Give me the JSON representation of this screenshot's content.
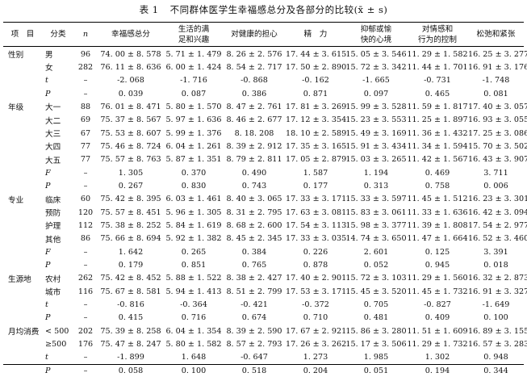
{
  "caption": {
    "number": "表 1",
    "title": "不同群体医学生幸福感总分及各部分的比较(x̄ ± s)"
  },
  "headers": [
    [
      "项　目"
    ],
    [
      "分类"
    ],
    [
      "n"
    ],
    [
      "幸福感总分"
    ],
    [
      "生活的满",
      "足和兴趣"
    ],
    [
      "对健康的担心"
    ],
    [
      "精　力"
    ],
    [
      "抑郁或愉",
      "快的心境"
    ],
    [
      "对情感和",
      "行为的控制"
    ],
    [
      "松弛和紧张"
    ]
  ],
  "rows": [
    [
      "性别",
      "男",
      "96",
      "74. 00 ± 8. 578",
      "5. 71 ± 1. 479",
      "8. 26 ± 2. 576",
      "17. 44 ± 3. 615",
      "15. 05 ± 3. 546",
      "11. 29 ± 1. 582",
      "16. 25 ± 3. 277"
    ],
    [
      "",
      "女",
      "282",
      "76. 11 ± 8. 636",
      "6. 00 ± 1. 424",
      "8. 54 ± 2. 717",
      "17. 50 ± 2. 890",
      "15. 72 ± 3. 342",
      "11. 44 ± 1. 701",
      "16. 91 ± 3. 176"
    ],
    [
      "",
      "t",
      "–",
      "-2. 068",
      "-1. 716",
      "-0. 868",
      "-0. 162",
      "-1. 665",
      "-0. 731",
      "-1. 748"
    ],
    [
      "",
      "P",
      "–",
      "0. 039",
      "0. 087",
      "0. 386",
      "0. 871",
      "0. 097",
      "0. 465",
      "0. 081"
    ],
    [
      "年级",
      "大一",
      "88",
      "76. 01 ± 8. 471",
      "5. 80 ± 1. 570",
      "8. 47 ± 2. 761",
      "17. 81 ± 3. 269",
      "15. 99 ± 3. 528",
      "11. 59 ± 1. 817",
      "17. 40 ± 3. 057"
    ],
    [
      "",
      "大二",
      "69",
      "75. 37 ± 8. 567",
      "5. 97 ± 1. 636",
      "8. 46 ± 2. 677",
      "17. 12 ± 3. 354",
      "15. 23 ± 3. 553",
      "11. 25 ± 1. 897",
      "16. 93 ± 3. 055"
    ],
    [
      "",
      "大三",
      "67",
      "75. 53 ± 8. 607",
      "5. 99 ± 1. 376",
      "8. 18. 208",
      "18. 10 ± 2. 589",
      "15. 49 ± 3. 169",
      "11. 36 ± 1. 432",
      "17. 25 ± 3. 086"
    ],
    [
      "",
      "大四",
      "77",
      "75. 46 ± 8. 724",
      "6. 04 ± 1. 261",
      "8. 39 ± 2. 912",
      "17. 35 ± 3. 165",
      "15. 91 ± 3. 434",
      "11. 34 ± 1. 594",
      "15. 70 ± 3. 502"
    ],
    [
      "",
      "大五",
      "77",
      "75. 57 ± 8. 763",
      "5. 87 ± 1. 351",
      "8. 79 ± 2. 811",
      "17. 05 ± 2. 879",
      "15. 03 ± 3. 265",
      "11. 42 ± 1. 567",
      "16. 43 ± 3. 907"
    ],
    [
      "",
      "F",
      "–",
      "1. 305",
      "0. 370",
      "0. 490",
      "1. 587",
      "1. 194",
      "0. 469",
      "3. 711"
    ],
    [
      "",
      "P",
      "–",
      "0. 267",
      "0. 830",
      "0. 743",
      "0. 177",
      "0. 313",
      "0. 758",
      "0. 006"
    ],
    [
      "专业",
      "临床",
      "60",
      "75. 42 ± 8. 395",
      "6. 03 ± 1. 461",
      "8. 40 ± 3. 065",
      "17. 33 ± 3. 171",
      "15. 33 ± 3. 597",
      "11. 45 ± 1. 512",
      "16. 23 ± 3. 301"
    ],
    [
      "",
      "预防",
      "120",
      "75. 57 ± 8. 451",
      "5. 96 ± 1. 305",
      "8. 31 ± 2. 795",
      "17. 63 ± 3. 081",
      "15. 83 ± 3. 061",
      "11. 33 ± 1. 636",
      "16. 42 ± 3. 094"
    ],
    [
      "",
      "护理",
      "112",
      "75. 38 ± 8. 252",
      "5. 84 ± 1. 619",
      "8. 68 ± 2. 600",
      "17. 54 ± 3. 113",
      "15. 98 ± 3. 377",
      "11. 39 ± 1. 808",
      "17. 54 ± 2. 977"
    ],
    [
      "",
      "其他",
      "86",
      "75. 66 ± 8. 694",
      "5. 92 ± 1. 382",
      "8. 45 ± 2. 345",
      "17. 33 ± 3. 035",
      "14. 74 ± 3. 650",
      "11. 47 ± 1. 664",
      "16. 52 ± 3. 460"
    ],
    [
      "",
      "F",
      "–",
      "1. 642",
      "0. 265",
      "0. 384",
      "0. 226",
      "2. 601",
      "0. 125",
      "3. 391"
    ],
    [
      "",
      "P",
      "–",
      "0. 179",
      "0. 851",
      "0. 765",
      "0. 878",
      "0. 052",
      "0. 945",
      "0. 018"
    ],
    [
      "生源地",
      "农村",
      "262",
      "75. 42 ± 8. 452",
      "5. 88 ± 1. 522",
      "8. 38 ± 2. 427",
      "17. 40 ± 2. 901",
      "15. 72 ± 3. 103",
      "11. 29 ± 1. 560",
      "16. 32 ± 2. 873"
    ],
    [
      "",
      "城市",
      "116",
      "75. 67 ± 8. 581",
      "5. 94 ± 1. 413",
      "8. 51 ± 2. 799",
      "17. 53 ± 3. 171",
      "15. 45 ± 3. 520",
      "11. 45 ± 1. 732",
      "16. 91 ± 3. 327"
    ],
    [
      "",
      "t",
      "–",
      "-0. 816",
      "-0. 364",
      "-0. 421",
      "-0. 372",
      "0. 705",
      "-0. 827",
      "-1. 649"
    ],
    [
      "",
      "P",
      "–",
      "0. 415",
      "0. 716",
      "0. 674",
      "0. 710",
      "0. 481",
      "0. 409",
      "0. 100"
    ],
    [
      "月均消费",
      "< 500",
      "202",
      "75. 39 ± 8. 258",
      "6. 04 ± 1. 354",
      "8. 39 ± 2. 590",
      "17. 67 ± 2. 921",
      "15. 86 ± 3. 280",
      "11. 51 ± 1. 609",
      "16. 89 ± 3. 155"
    ],
    [
      "",
      "≥500",
      "176",
      "75. 47 ± 8. 247",
      "5. 80 ± 1. 582",
      "8. 57 ± 2. 793",
      "17. 26 ± 3. 262",
      "15. 17 ± 3. 506",
      "11. 29 ± 1. 732",
      "16. 57 ± 3. 283"
    ],
    [
      "",
      "t",
      "–",
      "-1. 899",
      "1. 648",
      "-0. 647",
      "1. 273",
      "1. 985",
      "1. 302",
      "0. 948"
    ],
    [
      "",
      "P",
      "–",
      "0. 058",
      "0. 100",
      "0. 518",
      "0. 204",
      "0. 051",
      "0. 194",
      "0. 344"
    ]
  ]
}
